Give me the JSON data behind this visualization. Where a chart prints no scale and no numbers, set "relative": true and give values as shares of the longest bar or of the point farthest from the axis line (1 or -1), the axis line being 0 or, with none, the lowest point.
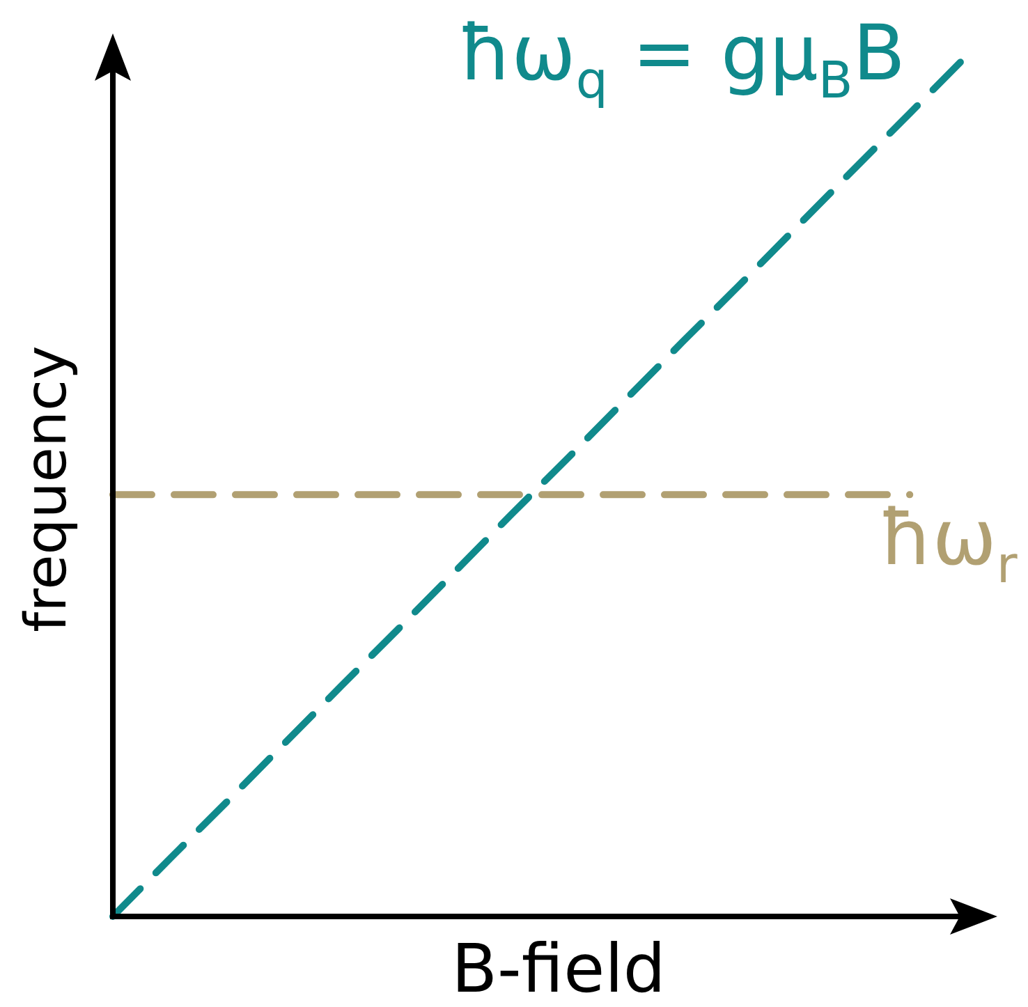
{
  "chart_data": {
    "type": "line",
    "xlabel": "B-field",
    "ylabel": "frequency",
    "relative": true,
    "line_style": "dashed",
    "categories": [
      null,
      null,
      null,
      null,
      null,
      null,
      null,
      null,
      null,
      null,
      null,
      null,
      null,
      null,
      null,
      null
    ],
    "series": [
      {
        "name": "ħω$_{q}$ = gμ$_{B}$B",
        "color": "#108a8c",
        "values": [
          0,
          0.067,
          0.133,
          0.2,
          0.267,
          0.333,
          0.4,
          0.467,
          0.533,
          0.6,
          0.667,
          0.733,
          0.8,
          0.867,
          0.933,
          1
        ]
      },
      {
        "name": "ħω$_{r}$",
        "color": "#b1a072",
        "values": [
          0.49,
          0.49,
          0.49,
          0.49,
          0.49,
          0.49,
          0.49,
          0.49,
          0.49,
          0.49,
          0.49,
          0.49,
          0.49,
          0.49,
          0.49,
          null
        ]
      }
    ]
  }
}
